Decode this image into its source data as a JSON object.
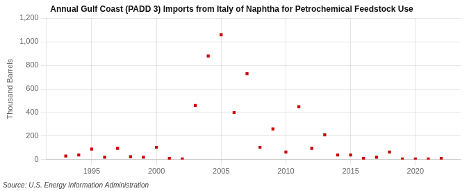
{
  "chart_data": {
    "type": "scatter",
    "title": "Annual Gulf Coast (PADD 3) Imports from Italy of Naphtha for Petrochemical Feedstock Use",
    "ylabel": "Thousand Barrels",
    "annotation": "Source: U.S. Energy Information Administration",
    "x": [
      1993,
      1994,
      1995,
      1996,
      1997,
      1998,
      1999,
      2000,
      2001,
      2002,
      2003,
      2004,
      2005,
      2006,
      2007,
      2008,
      2009,
      2010,
      2011,
      2012,
      2013,
      2014,
      2015,
      2016,
      2017,
      2018,
      2019,
      2020,
      2021,
      2022
    ],
    "values": [
      30,
      40,
      90,
      20,
      95,
      25,
      20,
      105,
      10,
      5,
      460,
      880,
      1060,
      400,
      730,
      105,
      260,
      65,
      450,
      95,
      210,
      40,
      40,
      10,
      20,
      65,
      5,
      5,
      5,
      10
    ],
    "color": "#cc0000",
    "marker": "square",
    "xlim": [
      1991.5,
      2023.5
    ],
    "xticks": [
      1995,
      2000,
      2005,
      2010,
      2015,
      2020
    ],
    "ylim": [
      0,
      1200
    ],
    "yticks": [
      0,
      200,
      400,
      600,
      800,
      {
        "value": 1000,
        "label": "1,000"
      },
      {
        "value": 1200,
        "label": "1,200"
      }
    ],
    "grid": true
  }
}
